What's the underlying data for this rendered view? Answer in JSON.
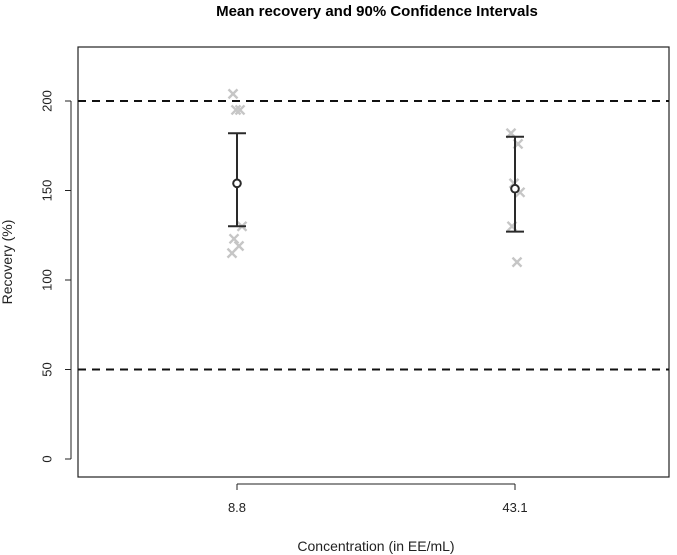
{
  "chart_data": {
    "type": "scatter",
    "title": "Mean recovery and 90% Confidence Intervals",
    "xlabel": "Concentration (in EE/mL)",
    "ylabel": "Recovery (%)",
    "ylim": [
      0,
      225
    ],
    "yticks": [
      0,
      50,
      100,
      150,
      200
    ],
    "categories": [
      "8.8",
      "43.1"
    ],
    "reference_lines": [
      50,
      200
    ],
    "series": [
      {
        "summary": [
          {
            "category": "8.8",
            "mean": 154,
            "ci_lower": 130,
            "ci_upper": 182
          },
          {
            "category": "43.1",
            "mean": 151,
            "ci_lower": 127,
            "ci_upper": 180
          }
        ]
      },
      {
        "points": [
          {
            "category": "8.8",
            "values": [
              204,
              195,
              195,
              130,
              123,
              119,
              115
            ]
          },
          {
            "category": "43.1",
            "values": [
              182,
              176,
              154,
              149,
              130,
              110
            ]
          }
        ]
      }
    ],
    "colors": {
      "individual": "#c6c6c6",
      "mean": "#2a2a2a",
      "ci": "#2a2a2a",
      "reference": "#111111"
    },
    "grid": false,
    "legend": "none"
  }
}
